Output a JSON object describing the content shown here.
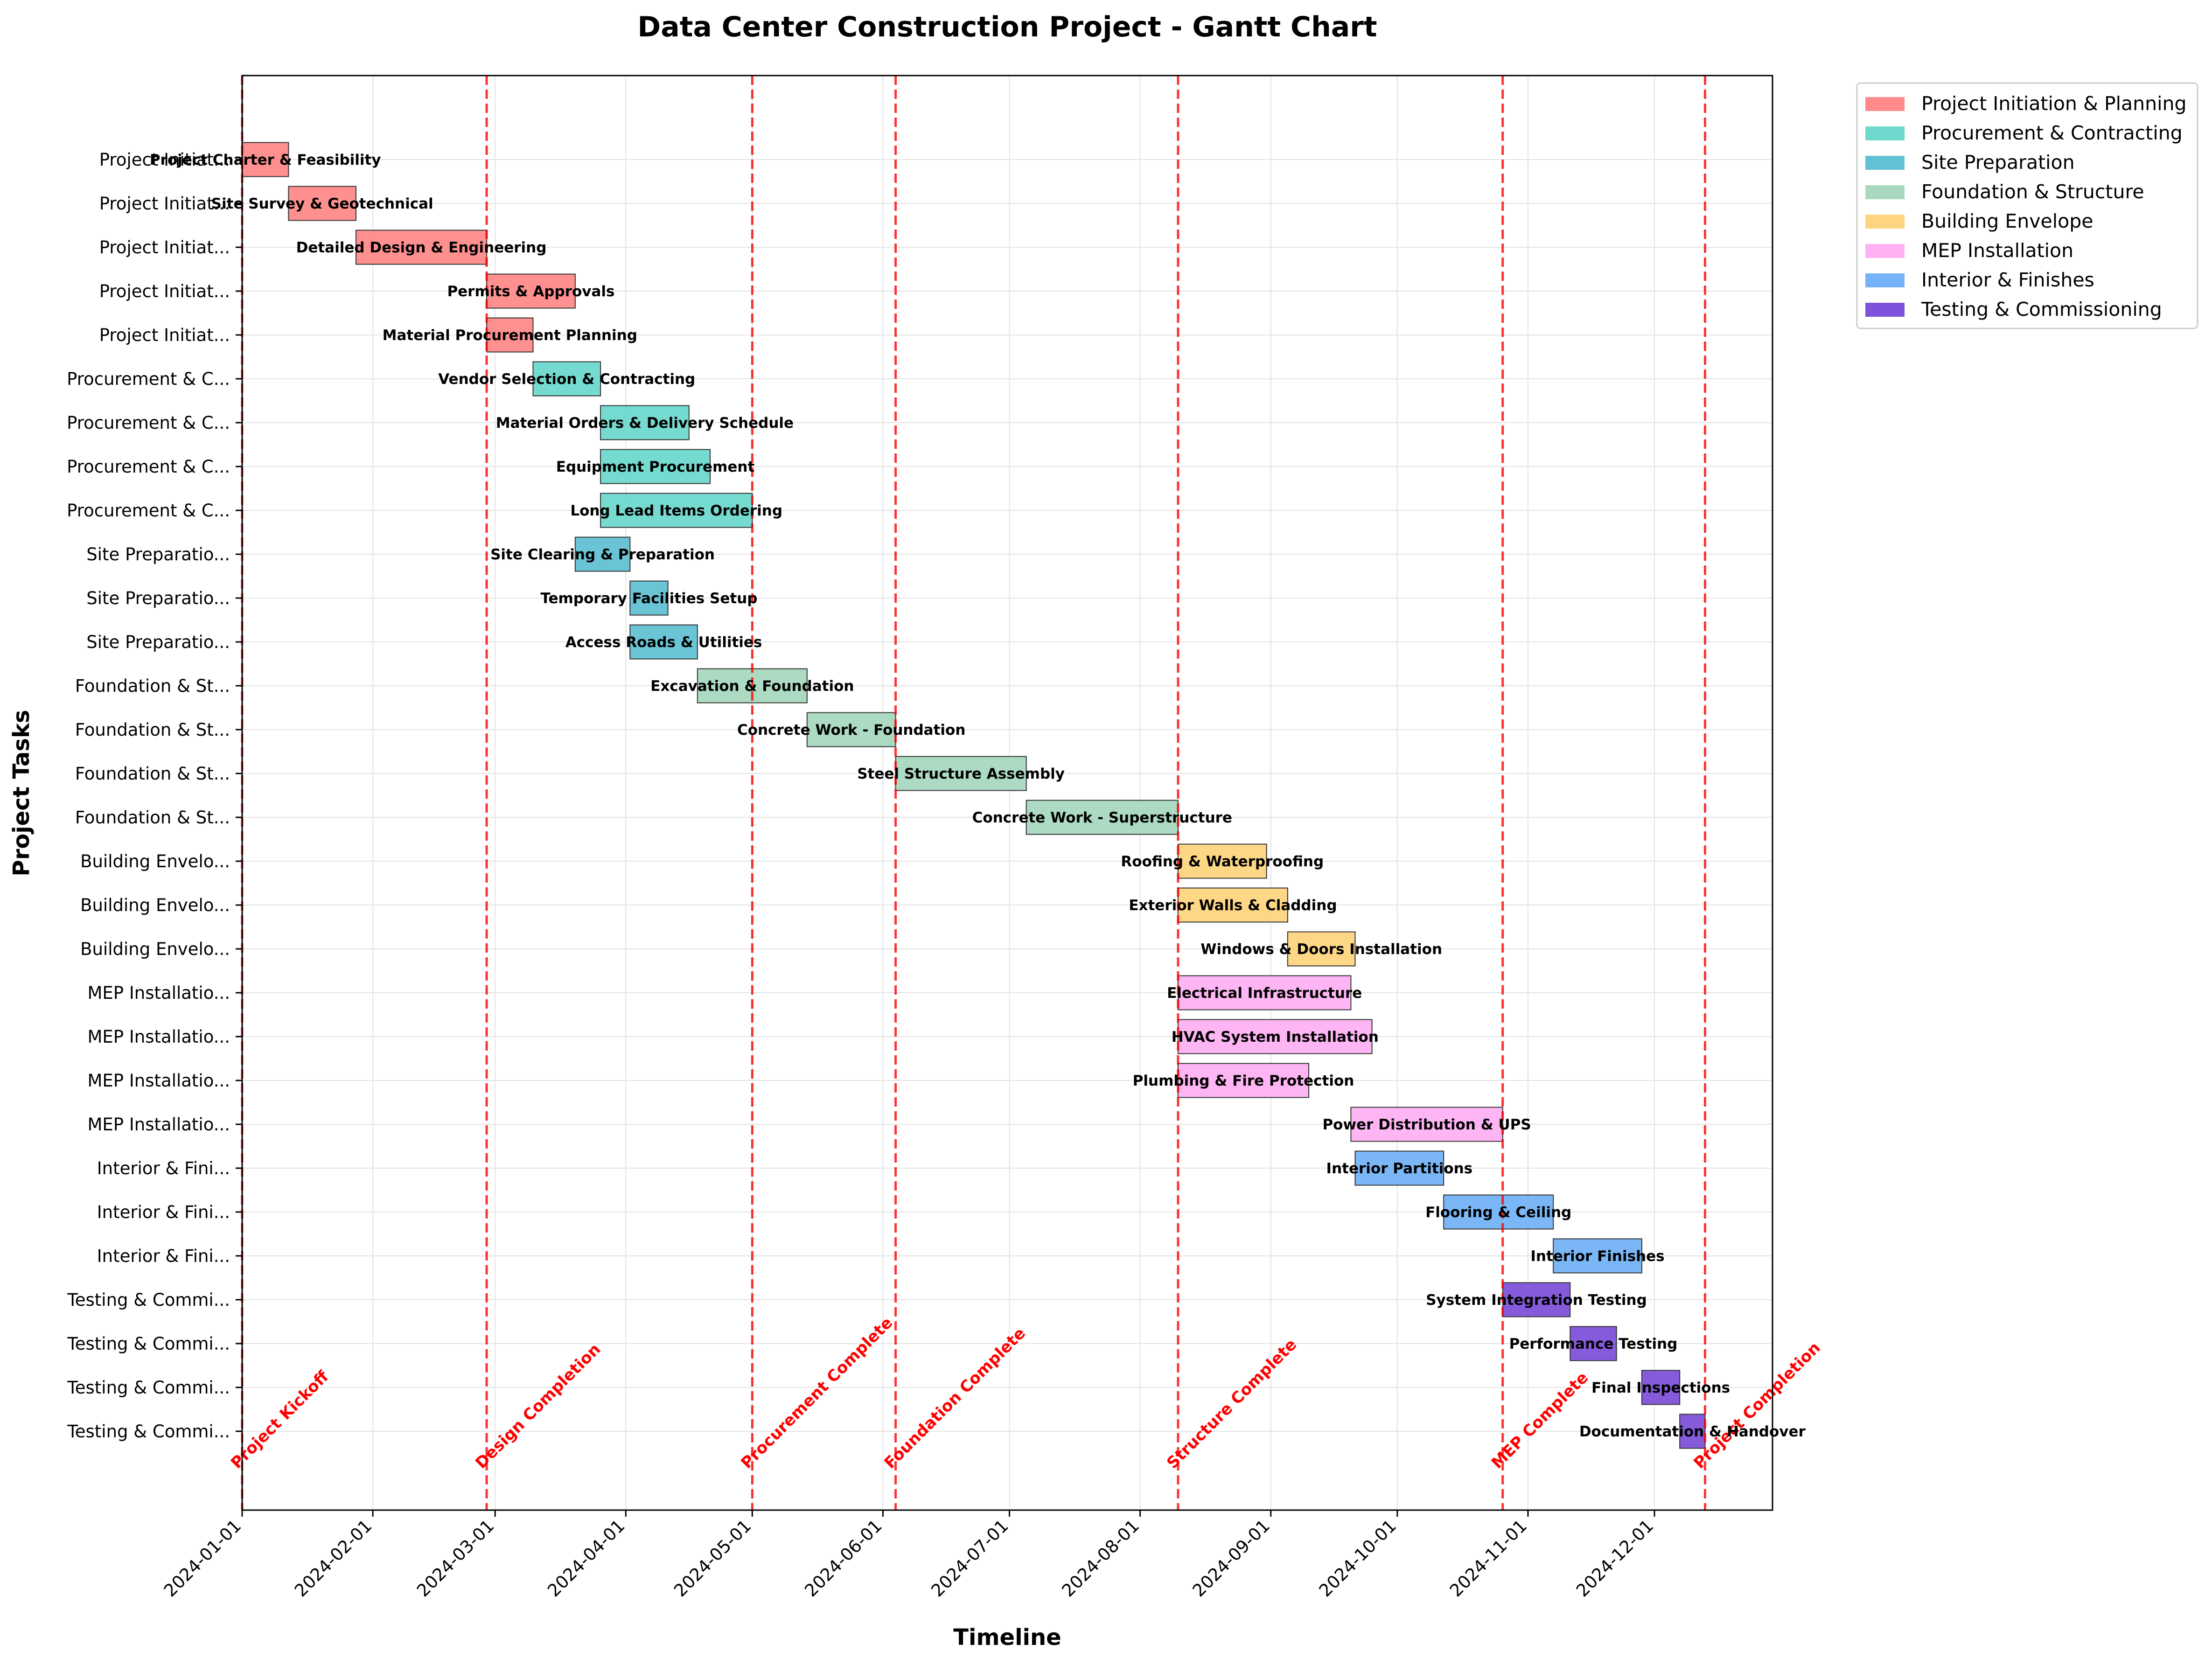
{
  "chart_data": {
    "type": "gantt",
    "title": "Data Center Construction Project - Gantt Chart",
    "xlabel": "Timeline",
    "ylabel": "Project Tasks",
    "xlim": [
      "2024-01-01",
      "2024-12-29"
    ],
    "x_ticks": [
      "2024-01-01",
      "2024-02-01",
      "2024-03-01",
      "2024-04-01",
      "2024-05-01",
      "2024-06-01",
      "2024-07-01",
      "2024-08-01",
      "2024-09-01",
      "2024-10-01",
      "2024-11-01",
      "2024-12-01"
    ],
    "grid": true,
    "legend_position": "outside-top-right",
    "phases": [
      {
        "name": "Project Initiation & Planning",
        "color": "#FF8A8A",
        "short": "Project Initiat..."
      },
      {
        "name": "Procurement & Contracting",
        "color": "#6ED8CC",
        "short": "Procurement & C..."
      },
      {
        "name": "Site Preparation",
        "color": "#62C1D4",
        "short": "Site Preparatio..."
      },
      {
        "name": "Foundation & Structure",
        "color": "#A8D8C0",
        "short": "Foundation & St..."
      },
      {
        "name": "Building Envelope",
        "color": "#FDD580",
        "short": "Building Envelo..."
      },
      {
        "name": "MEP Installation",
        "color": "#FDB1F2",
        "short": "MEP Installatio..."
      },
      {
        "name": "Interior & Finishes",
        "color": "#74B3F7",
        "short": "Interior & Fini..."
      },
      {
        "name": "Testing & Commissioning",
        "color": "#7E52DA",
        "short": "Testing & Commi..."
      }
    ],
    "tasks": [
      {
        "name": "Project Charter & Feasibility",
        "phase": 0,
        "start": "2024-01-01",
        "end": "2024-01-11",
        "ylabel": "Project Initiat..."
      },
      {
        "name": "Site Survey & Geotechnical",
        "phase": 0,
        "start": "2024-01-12",
        "end": "2024-01-27",
        "ylabel": "Project Initiat..."
      },
      {
        "name": "Detailed Design & Engineering",
        "phase": 0,
        "start": "2024-01-28",
        "end": "2024-02-27",
        "ylabel": "Project Initiat..."
      },
      {
        "name": "Permits & Approvals",
        "phase": 0,
        "start": "2024-02-28",
        "end": "2024-03-19",
        "ylabel": "Project Initiat..."
      },
      {
        "name": "Material Procurement Planning",
        "phase": 0,
        "start": "2024-02-28",
        "end": "2024-03-09",
        "ylabel": "Project Initiat..."
      },
      {
        "name": "Vendor Selection & Contracting",
        "phase": 1,
        "start": "2024-03-10",
        "end": "2024-03-25",
        "ylabel": "Procurement & C..."
      },
      {
        "name": "Material Orders & Delivery Schedule",
        "phase": 1,
        "start": "2024-03-26",
        "end": "2024-04-15",
        "ylabel": "Procurement & C..."
      },
      {
        "name": "Equipment Procurement",
        "phase": 1,
        "start": "2024-03-26",
        "end": "2024-04-20",
        "ylabel": "Procurement & C..."
      },
      {
        "name": "Long Lead Items Ordering",
        "phase": 1,
        "start": "2024-03-26",
        "end": "2024-04-30",
        "ylabel": "Procurement & C..."
      },
      {
        "name": "Site Clearing & Preparation",
        "phase": 2,
        "start": "2024-03-20",
        "end": "2024-04-01",
        "ylabel": "Site Preparatio..."
      },
      {
        "name": "Temporary Facilities Setup",
        "phase": 2,
        "start": "2024-04-02",
        "end": "2024-04-10",
        "ylabel": "Site Preparatio..."
      },
      {
        "name": "Access Roads & Utilities",
        "phase": 2,
        "start": "2024-04-02",
        "end": "2024-04-17",
        "ylabel": "Site Preparatio..."
      },
      {
        "name": "Excavation & Foundation",
        "phase": 3,
        "start": "2024-04-18",
        "end": "2024-05-13",
        "ylabel": "Foundation & St..."
      },
      {
        "name": "Concrete Work - Foundation",
        "phase": 3,
        "start": "2024-05-14",
        "end": "2024-06-03",
        "ylabel": "Foundation & St..."
      },
      {
        "name": "Steel Structure Assembly",
        "phase": 3,
        "start": "2024-06-04",
        "end": "2024-07-04",
        "ylabel": "Foundation & St..."
      },
      {
        "name": "Concrete Work - Superstructure",
        "phase": 3,
        "start": "2024-07-05",
        "end": "2024-08-09",
        "ylabel": "Foundation & St..."
      },
      {
        "name": "Roofing & Waterproofing",
        "phase": 4,
        "start": "2024-08-10",
        "end": "2024-08-30",
        "ylabel": "Building Envelo..."
      },
      {
        "name": "Exterior Walls & Cladding",
        "phase": 4,
        "start": "2024-08-10",
        "end": "2024-09-04",
        "ylabel": "Building Envelo..."
      },
      {
        "name": "Windows & Doors Installation",
        "phase": 4,
        "start": "2024-09-05",
        "end": "2024-09-20",
        "ylabel": "Building Envelo..."
      },
      {
        "name": "Electrical Infrastructure",
        "phase": 5,
        "start": "2024-08-10",
        "end": "2024-09-19",
        "ylabel": "MEP Installatio..."
      },
      {
        "name": "HVAC System Installation",
        "phase": 5,
        "start": "2024-08-10",
        "end": "2024-09-24",
        "ylabel": "MEP Installatio..."
      },
      {
        "name": "Plumbing & Fire Protection",
        "phase": 5,
        "start": "2024-08-10",
        "end": "2024-09-09",
        "ylabel": "MEP Installatio..."
      },
      {
        "name": "Power Distribution & UPS",
        "phase": 5,
        "start": "2024-09-20",
        "end": "2024-10-25",
        "ylabel": "MEP Installatio..."
      },
      {
        "name": "Interior Partitions",
        "phase": 6,
        "start": "2024-09-21",
        "end": "2024-10-11",
        "ylabel": "Interior & Fini..."
      },
      {
        "name": "Flooring & Ceiling",
        "phase": 6,
        "start": "2024-10-12",
        "end": "2024-11-06",
        "ylabel": "Interior & Fini..."
      },
      {
        "name": "Interior Finishes",
        "phase": 6,
        "start": "2024-11-07",
        "end": "2024-11-27",
        "ylabel": "Interior & Fini..."
      },
      {
        "name": "System Integration Testing",
        "phase": 7,
        "start": "2024-10-26",
        "end": "2024-11-10",
        "ylabel": "Testing & Commi..."
      },
      {
        "name": "Performance Testing",
        "phase": 7,
        "start": "2024-11-11",
        "end": "2024-11-21",
        "ylabel": "Testing & Commi..."
      },
      {
        "name": "Final Inspections",
        "phase": 7,
        "start": "2024-11-28",
        "end": "2024-12-06",
        "ylabel": "Testing & Commi..."
      },
      {
        "name": "Documentation & Handover",
        "phase": 7,
        "start": "2024-12-07",
        "end": "2024-12-12",
        "ylabel": "Testing & Commi..."
      }
    ],
    "milestones": [
      {
        "name": "Project Kickoff",
        "date": "2024-01-01"
      },
      {
        "name": "Design Completion",
        "date": "2024-02-27"
      },
      {
        "name": "Procurement Complete",
        "date": "2024-04-30"
      },
      {
        "name": "Foundation Complete",
        "date": "2024-06-03"
      },
      {
        "name": "Structure Complete",
        "date": "2024-08-09"
      },
      {
        "name": "MEP Complete",
        "date": "2024-10-25"
      },
      {
        "name": "Project Completion",
        "date": "2024-12-12"
      }
    ],
    "colors": {
      "milestone": "#FF0000",
      "grid": "#E3E3E3"
    }
  }
}
